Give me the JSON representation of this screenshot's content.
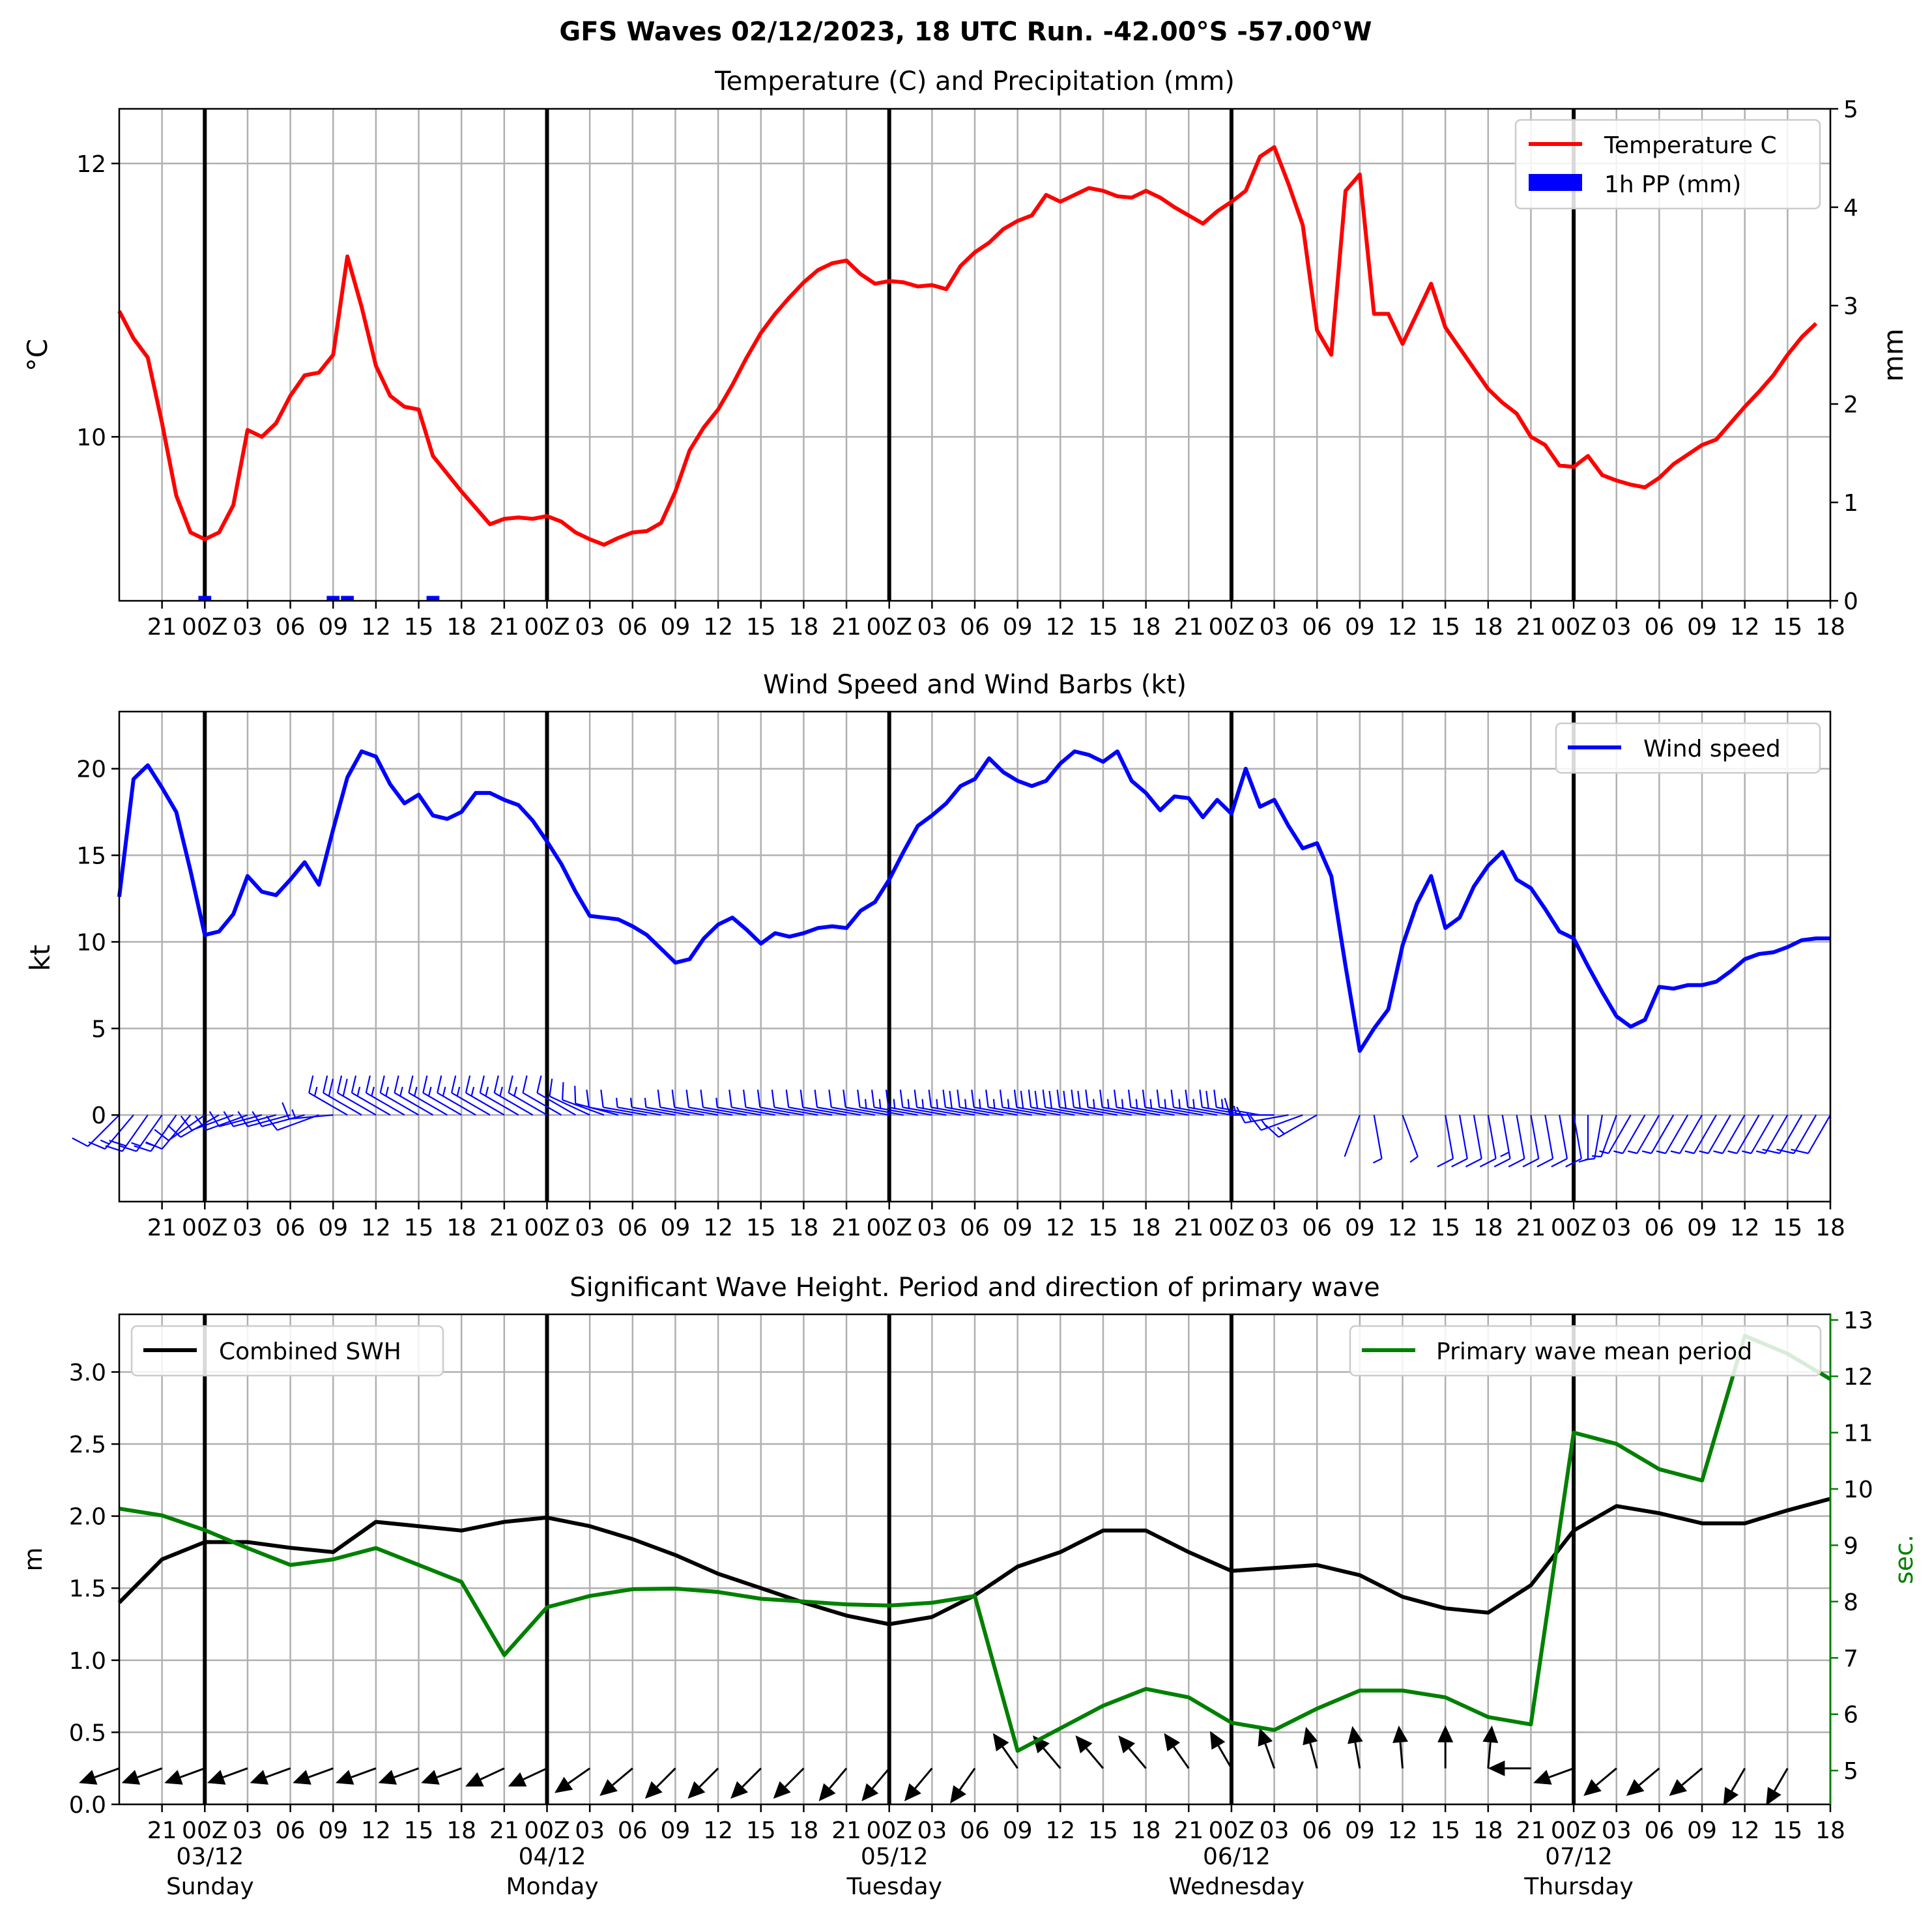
{
  "figure": {
    "suptitle": "GFS Waves 02/12/2023, 18 UTC Run. -42.00°S -57.00°W"
  },
  "colors": {
    "temperature": "#ff0000",
    "precip": "#0000ff",
    "wind": "#0000ff",
    "swh": "#000000",
    "period": "#008000",
    "grid": "#b0b0b0"
  },
  "x_axis": {
    "start_hour": 18,
    "end_hour": 138,
    "tick_labels": [
      {
        "h": 21,
        "label": "21"
      },
      {
        "h": 24,
        "label": "00Z"
      },
      {
        "h": 27,
        "label": "03"
      },
      {
        "h": 30,
        "label": "06"
      },
      {
        "h": 33,
        "label": "09"
      },
      {
        "h": 36,
        "label": "12"
      },
      {
        "h": 39,
        "label": "15"
      },
      {
        "h": 42,
        "label": "18"
      },
      {
        "h": 45,
        "label": "21"
      },
      {
        "h": 48,
        "label": "00Z"
      },
      {
        "h": 51,
        "label": "03"
      },
      {
        "h": 54,
        "label": "06"
      },
      {
        "h": 57,
        "label": "09"
      },
      {
        "h": 60,
        "label": "12"
      },
      {
        "h": 63,
        "label": "15"
      },
      {
        "h": 66,
        "label": "18"
      },
      {
        "h": 69,
        "label": "21"
      },
      {
        "h": 72,
        "label": "00Z"
      },
      {
        "h": 75,
        "label": "03"
      },
      {
        "h": 78,
        "label": "06"
      },
      {
        "h": 81,
        "label": "09"
      },
      {
        "h": 84,
        "label": "12"
      },
      {
        "h": 87,
        "label": "15"
      },
      {
        "h": 90,
        "label": "18"
      },
      {
        "h": 93,
        "label": "21"
      },
      {
        "h": 96,
        "label": "00Z"
      },
      {
        "h": 99,
        "label": "03"
      },
      {
        "h": 102,
        "label": "06"
      },
      {
        "h": 105,
        "label": "09"
      },
      {
        "h": 108,
        "label": "12"
      },
      {
        "h": 111,
        "label": "15"
      },
      {
        "h": 114,
        "label": "18"
      },
      {
        "h": 117,
        "label": "21"
      },
      {
        "h": 120,
        "label": "00Z"
      },
      {
        "h": 123,
        "label": "03"
      },
      {
        "h": 126,
        "label": "06"
      },
      {
        "h": 129,
        "label": "09"
      },
      {
        "h": 132,
        "label": "12"
      },
      {
        "h": 135,
        "label": "15"
      },
      {
        "h": 138,
        "label": "18"
      }
    ],
    "day_lines": [
      24,
      48,
      72,
      96,
      120
    ],
    "day_labels": [
      {
        "h": 24,
        "date": "03/12",
        "weekday": "Sunday"
      },
      {
        "h": 48,
        "date": "04/12",
        "weekday": "Monday"
      },
      {
        "h": 72,
        "date": "05/12",
        "weekday": "Tuesday"
      },
      {
        "h": 96,
        "date": "06/12",
        "weekday": "Wednesday"
      },
      {
        "h": 120,
        "date": "07/12",
        "weekday": "Thursday"
      }
    ]
  },
  "chart_data": [
    {
      "type": "line",
      "title": "Temperature (C) and Precipitation (mm)",
      "ylabel": "°C",
      "ylabel_right": "mm",
      "ylim": [
        8.8,
        12.4
      ],
      "ylim_right": [
        0,
        5
      ],
      "yticks": [
        10,
        12
      ],
      "yticks_right": [
        0,
        1,
        2,
        3,
        4,
        5
      ],
      "legend": {
        "position": "upper-right",
        "temperature_label": "Temperature C",
        "precip_label": "1h PP (mm)"
      },
      "x_hours": [
        18,
        19,
        20,
        21,
        22,
        23,
        24,
        25,
        26,
        27,
        28,
        29,
        30,
        31,
        32,
        33,
        34,
        35,
        36,
        37,
        38,
        39,
        40,
        41,
        42,
        43,
        44,
        45,
        46,
        47,
        48,
        49,
        50,
        51,
        52,
        53,
        54,
        55,
        56,
        57,
        58,
        59,
        60,
        61,
        62,
        63,
        64,
        65,
        66,
        67,
        68,
        69,
        70,
        71,
        72,
        73,
        74,
        75,
        76,
        77,
        78,
        79,
        80,
        81,
        82,
        83,
        84,
        85,
        86,
        87,
        88,
        89,
        90,
        91,
        92,
        93,
        94,
        95,
        96,
        97,
        98,
        99,
        100,
        101,
        102,
        103,
        104,
        105,
        106,
        107,
        108,
        109,
        110,
        111,
        112,
        113,
        114,
        115,
        116,
        117,
        118,
        119,
        120,
        121,
        122,
        123,
        124,
        125,
        126,
        127,
        128,
        129,
        130,
        131,
        132,
        133,
        134,
        135,
        136,
        137,
        138
      ],
      "temperature": [
        10.92,
        10.72,
        10.58,
        10.1,
        9.57,
        9.3,
        9.25,
        9.3,
        9.5,
        10.05,
        10.0,
        10.1,
        10.3,
        10.45,
        10.47,
        10.6,
        11.32,
        10.95,
        10.52,
        10.3,
        10.22,
        10.2,
        9.86,
        9.73,
        9.6,
        9.48,
        9.36,
        9.4,
        9.41,
        9.4,
        9.42,
        9.38,
        9.3,
        9.25,
        9.21,
        9.26,
        9.3,
        9.31,
        9.37,
        9.6,
        9.9,
        10.07,
        10.2,
        10.38,
        10.58,
        10.76,
        10.9,
        11.02,
        11.13,
        11.22,
        11.27,
        11.29,
        11.19,
        11.12,
        11.14,
        11.13,
        11.1,
        11.11,
        11.08,
        11.25,
        11.35,
        11.42,
        11.52,
        11.58,
        11.62,
        11.77,
        11.72,
        11.77,
        11.82,
        11.8,
        11.76,
        11.75,
        11.8,
        11.75,
        11.68,
        11.62,
        11.56,
        11.65,
        11.72,
        11.8,
        12.05,
        12.12,
        11.85,
        11.55,
        10.78,
        10.6,
        11.8,
        11.92,
        10.9,
        10.9,
        10.68,
        10.9,
        11.12,
        10.8,
        10.65,
        10.5,
        10.35,
        10.25,
        10.17,
        10.0,
        9.94,
        9.79,
        9.78,
        9.86,
        9.72,
        9.68,
        9.65,
        9.63,
        9.7,
        9.8,
        9.87,
        9.94,
        9.98,
        10.1,
        10.22,
        10.33,
        10.45,
        10.6,
        10.73,
        10.83
      ],
      "precip": [
        {
          "h": 24,
          "mm": 0.05
        },
        {
          "h": 33,
          "mm": 0.05
        },
        {
          "h": 34,
          "mm": 0.05
        },
        {
          "h": 40,
          "mm": 0.05
        }
      ]
    },
    {
      "type": "line",
      "title": "Wind Speed and Wind Barbs (kt)",
      "ylabel": "kt",
      "ylim": [
        -5,
        23.3
      ],
      "yticks": [
        0,
        5,
        10,
        15,
        20
      ],
      "legend": {
        "position": "upper-right",
        "label": "Wind speed"
      },
      "x_hours": [
        18,
        19,
        20,
        21,
        22,
        23,
        24,
        25,
        26,
        27,
        28,
        29,
        30,
        31,
        32,
        33,
        34,
        35,
        36,
        37,
        38,
        39,
        40,
        41,
        42,
        43,
        44,
        45,
        46,
        47,
        48,
        49,
        50,
        51,
        52,
        53,
        54,
        55,
        56,
        57,
        58,
        59,
        60,
        61,
        62,
        63,
        64,
        65,
        66,
        67,
        68,
        69,
        70,
        71,
        72,
        73,
        74,
        75,
        76,
        77,
        78,
        79,
        80,
        81,
        82,
        83,
        84,
        85,
        86,
        87,
        88,
        89,
        90,
        91,
        92,
        93,
        94,
        95,
        96,
        97,
        98,
        99,
        100,
        101,
        102,
        103,
        104,
        105,
        106,
        107,
        108,
        109,
        110,
        111,
        112,
        113,
        114,
        115,
        116,
        117,
        118,
        119,
        120,
        121,
        122,
        123,
        124,
        125,
        126,
        127,
        128,
        129,
        130,
        131,
        132,
        133,
        134,
        135,
        136,
        137,
        138
      ],
      "wind_speed": [
        12.6,
        19.4,
        20.2,
        18.9,
        17.5,
        14.1,
        10.4,
        10.6,
        11.6,
        13.8,
        12.9,
        12.7,
        13.6,
        14.6,
        13.3,
        16.5,
        19.5,
        21.0,
        20.7,
        19.1,
        18.0,
        18.5,
        17.3,
        17.1,
        17.5,
        18.6,
        18.6,
        18.2,
        17.9,
        17.0,
        15.8,
        14.5,
        12.9,
        11.5,
        11.4,
        11.3,
        10.9,
        10.4,
        9.6,
        8.8,
        9.0,
        10.2,
        11.0,
        11.4,
        10.7,
        9.9,
        10.5,
        10.3,
        10.5,
        10.8,
        10.9,
        10.8,
        11.8,
        12.3,
        13.6,
        15.2,
        16.7,
        17.3,
        18.0,
        19.0,
        19.4,
        20.6,
        19.8,
        19.3,
        19.0,
        19.3,
        20.3,
        21.0,
        20.8,
        20.4,
        21.0,
        19.3,
        18.6,
        17.6,
        18.4,
        18.3,
        17.2,
        18.2,
        17.4,
        20.0,
        17.8,
        18.2,
        16.7,
        15.4,
        15.7,
        13.8,
        8.6,
        3.7,
        5.0,
        6.1,
        9.8,
        12.2,
        13.8,
        10.8,
        11.4,
        13.2,
        14.4,
        15.2,
        13.6,
        13.1,
        11.9,
        10.6,
        10.2,
        8.6,
        7.1,
        5.7,
        5.1,
        5.5,
        7.4,
        7.3,
        7.5,
        7.5,
        7.7,
        8.3,
        9.0,
        9.3,
        9.4,
        9.7,
        10.1,
        10.2,
        10.2
      ],
      "barb_hours": [
        18,
        19,
        20,
        21,
        22,
        23,
        24,
        25,
        26,
        27,
        28,
        29,
        30,
        31,
        32,
        33,
        34,
        35,
        36,
        37,
        38,
        39,
        40,
        41,
        42,
        43,
        44,
        45,
        46,
        47,
        48,
        49,
        50,
        51,
        52,
        53,
        54,
        55,
        56,
        57,
        58,
        59,
        60,
        61,
        62,
        63,
        64,
        65,
        66,
        67,
        68,
        69,
        70,
        71,
        72,
        73,
        74,
        75,
        76,
        77,
        78,
        79,
        80,
        81,
        82,
        83,
        84,
        85,
        86,
        87,
        88,
        89,
        90,
        91,
        92,
        93,
        94,
        95,
        96,
        97,
        98,
        99,
        100,
        101,
        102,
        105,
        106,
        108,
        111,
        112,
        113,
        114,
        115,
        116,
        117,
        118,
        119,
        120,
        121,
        122,
        123,
        124,
        125,
        126,
        127,
        128,
        129,
        130,
        131,
        132,
        133,
        134,
        135,
        136,
        137,
        138
      ],
      "barb_direction_deg": [
        225,
        220,
        215,
        215,
        215,
        220,
        235,
        240,
        250,
        250,
        255,
        255,
        255,
        255,
        250,
        265,
        300,
        300,
        300,
        300,
        300,
        300,
        300,
        300,
        300,
        300,
        300,
        300,
        300,
        300,
        300,
        300,
        300,
        295,
        290,
        285,
        280,
        280,
        280,
        280,
        280,
        280,
        280,
        280,
        280,
        280,
        280,
        280,
        280,
        280,
        280,
        280,
        280,
        280,
        280,
        280,
        280,
        280,
        280,
        280,
        280,
        280,
        280,
        280,
        280,
        280,
        280,
        280,
        280,
        280,
        280,
        280,
        280,
        280,
        280,
        280,
        280,
        280,
        280,
        280,
        280,
        270,
        260,
        250,
        240,
        200,
        170,
        160,
        170,
        170,
        170,
        170,
        170,
        170,
        170,
        170,
        170,
        170,
        180,
        190,
        200,
        210,
        210,
        210,
        210,
        210,
        210,
        210,
        210,
        210,
        210,
        210,
        210,
        210,
        210,
        210
      ]
    },
    {
      "type": "line",
      "title": "Significant Wave Height. Period and direction of primary wave",
      "ylabel": "m",
      "ylabel_right": "sec.",
      "ylim": [
        0,
        3.4
      ],
      "ylim_right": [
        4.4,
        13.1
      ],
      "yticks": [
        0.0,
        0.5,
        1.0,
        1.5,
        2.0,
        2.5,
        3.0
      ],
      "yticks_right": [
        5,
        6,
        7,
        8,
        9,
        10,
        11,
        12,
        13
      ],
      "legend_left": {
        "position": "upper-left",
        "label": "Combined SWH"
      },
      "legend_right": {
        "position": "upper-right",
        "label": "Primary wave mean period"
      },
      "x_hours": [
        18,
        21,
        24,
        27,
        30,
        33,
        36,
        39,
        42,
        45,
        48,
        51,
        54,
        57,
        60,
        63,
        66,
        69,
        72,
        75,
        78,
        81,
        84,
        87,
        90,
        93,
        96,
        99,
        102,
        105,
        108,
        111,
        114,
        117,
        120,
        123,
        126,
        129,
        132,
        135,
        138
      ],
      "swh": [
        1.4,
        1.7,
        1.82,
        1.82,
        1.78,
        1.75,
        1.96,
        1.93,
        1.9,
        1.96,
        1.99,
        1.93,
        1.84,
        1.73,
        1.6,
        1.5,
        1.4,
        1.31,
        1.25,
        1.3,
        1.45,
        1.65,
        1.75,
        1.9,
        1.9,
        1.75,
        1.62,
        1.64,
        1.66,
        1.59,
        1.44,
        1.36,
        1.33,
        1.52,
        1.9,
        2.07,
        2.02,
        1.95,
        1.95,
        2.04,
        2.12
      ],
      "period_sec": [
        9.65,
        9.53,
        9.27,
        8.95,
        8.65,
        8.75,
        8.95,
        8.65,
        8.35,
        7.05,
        7.9,
        8.1,
        8.22,
        8.23,
        8.17,
        8.05,
        8.0,
        7.95,
        7.93,
        7.98,
        8.1,
        5.35,
        5.75,
        6.15,
        6.45,
        6.3,
        5.85,
        5.72,
        6.1,
        6.42,
        6.42,
        6.3,
        5.95,
        5.82,
        11.0,
        10.8,
        10.35,
        10.15,
        12.72,
        12.4,
        11.95
      ],
      "wave_dir_hours": [
        18,
        21,
        24,
        27,
        30,
        33,
        36,
        39,
        42,
        45,
        48,
        51,
        54,
        57,
        60,
        63,
        66,
        69,
        72,
        75,
        78,
        81,
        84,
        87,
        90,
        93,
        96,
        99,
        102,
        105,
        108,
        111,
        114,
        117,
        120,
        123,
        126,
        129,
        132,
        135
      ],
      "wave_dir_deg": [
        250,
        250,
        250,
        250,
        250,
        250,
        250,
        250,
        250,
        245,
        245,
        235,
        230,
        225,
        225,
        225,
        225,
        220,
        220,
        220,
        215,
        325,
        320,
        320,
        320,
        325,
        330,
        340,
        345,
        350,
        355,
        0,
        5,
        270,
        250,
        230,
        230,
        230,
        210,
        210
      ]
    }
  ]
}
